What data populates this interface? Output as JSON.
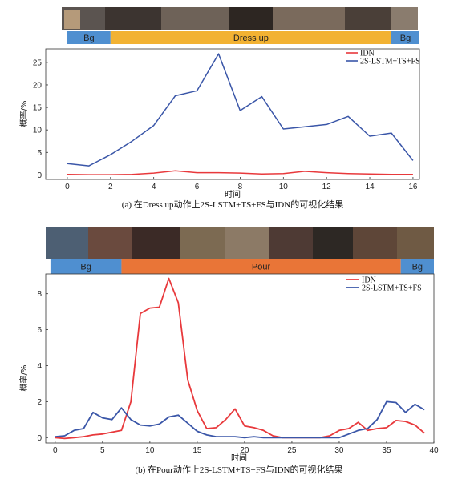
{
  "colors": {
    "idn": "#e8393c",
    "lstm": "#3a56a8",
    "seg_bg": "#4f8fd0",
    "seg_dress": "#f2b233",
    "seg_pour": "#e97537"
  },
  "panels": [
    {
      "segments": [
        {
          "label": "Bg",
          "from": 0,
          "to": 2
        },
        {
          "label": "Dress up",
          "from": 2,
          "to": 15
        },
        {
          "label": "Bg",
          "from": 15,
          "to": 16.3
        }
      ],
      "caption": "(a) 在Dress up动作上2S-LSTM+TS+FS与IDN的可视化结果"
    },
    {
      "segments": [
        {
          "label": "Bg",
          "from": -0.5,
          "to": 7
        },
        {
          "label": "Pour",
          "from": 7,
          "to": 36.5
        },
        {
          "label": "Bg",
          "from": 36.5,
          "to": 40
        }
      ],
      "caption": "(b) 在Pour动作上2S-LSTM+TS+FS与IDN的可视化结果"
    }
  ],
  "chart_data": [
    {
      "type": "line",
      "xlabel": "时间",
      "ylabel": "概率/%",
      "xlim": [
        -1,
        16.3
      ],
      "ylim": [
        -1,
        28
      ],
      "xticks": [
        0,
        2,
        4,
        6,
        8,
        10,
        12,
        14,
        16
      ],
      "yticks": [
        0,
        5,
        10,
        15,
        20,
        25
      ],
      "legend": "top-right",
      "series": [
        {
          "name": "IDN",
          "color": "#e8393c",
          "x": [
            0,
            1,
            2,
            3,
            4,
            5,
            6,
            7,
            8,
            9,
            10,
            11,
            12,
            13,
            14,
            15,
            16
          ],
          "y": [
            0.1,
            0.05,
            0.05,
            0.1,
            0.4,
            0.9,
            0.5,
            0.5,
            0.4,
            0.2,
            0.3,
            0.8,
            0.5,
            0.3,
            0.2,
            0.1,
            0.1
          ]
        },
        {
          "name": "2S-LSTM+TS+FS",
          "color": "#3a56a8",
          "x": [
            0,
            1,
            2,
            3,
            4,
            5,
            6,
            7,
            8,
            9,
            10,
            11,
            12,
            13,
            14,
            15,
            16
          ],
          "y": [
            2.5,
            2.0,
            4.5,
            7.5,
            11.0,
            17.6,
            18.7,
            26.9,
            14.3,
            17.4,
            10.2,
            10.7,
            11.2,
            13.0,
            8.6,
            9.3,
            3.2
          ]
        }
      ]
    },
    {
      "type": "line",
      "xlabel": "时间",
      "ylabel": "概率/%",
      "xlim": [
        -1,
        40
      ],
      "ylim": [
        -0.3,
        9.1
      ],
      "xticks": [
        0,
        5,
        10,
        15,
        20,
        25,
        30,
        35,
        40
      ],
      "yticks": [
        0,
        2,
        4,
        6,
        8
      ],
      "legend": "top-right",
      "series": [
        {
          "name": "IDN",
          "color": "#e8393c",
          "x": [
            0,
            1,
            2,
            3,
            4,
            5,
            6,
            7,
            8,
            9,
            10,
            11,
            12,
            13,
            14,
            15,
            16,
            17,
            18,
            19,
            20,
            21,
            22,
            23,
            24,
            25,
            26,
            27,
            28,
            29,
            30,
            31,
            32,
            33,
            34,
            35,
            36,
            37,
            38,
            39
          ],
          "y": [
            0.0,
            -0.05,
            0.0,
            0.05,
            0.15,
            0.2,
            0.3,
            0.4,
            2.0,
            6.9,
            7.2,
            7.25,
            8.85,
            7.5,
            3.2,
            1.5,
            0.5,
            0.55,
            1.0,
            1.6,
            0.65,
            0.55,
            0.4,
            0.1,
            0.0,
            0.0,
            0.0,
            0.0,
            0.0,
            0.1,
            0.4,
            0.5,
            0.85,
            0.4,
            0.5,
            0.55,
            0.95,
            0.9,
            0.7,
            0.25
          ]
        },
        {
          "name": "2S-LSTM+TS+FS",
          "color": "#3a56a8",
          "x": [
            0,
            1,
            2,
            3,
            4,
            5,
            6,
            7,
            8,
            9,
            10,
            11,
            12,
            13,
            14,
            15,
            16,
            17,
            18,
            19,
            20,
            21,
            22,
            23,
            24,
            25,
            26,
            27,
            28,
            29,
            30,
            31,
            32,
            33,
            34,
            35,
            36,
            37,
            38,
            39
          ],
          "y": [
            0.05,
            0.1,
            0.4,
            0.5,
            1.4,
            1.1,
            1.0,
            1.65,
            1.0,
            0.7,
            0.65,
            0.75,
            1.15,
            1.25,
            0.8,
            0.35,
            0.15,
            0.05,
            0.05,
            0.05,
            0.0,
            0.05,
            0.0,
            0.0,
            0.0,
            0.0,
            0.0,
            0.0,
            0.0,
            0.0,
            0.0,
            0.2,
            0.4,
            0.5,
            1.0,
            2.0,
            1.95,
            1.4,
            1.85,
            1.55
          ]
        }
      ]
    }
  ]
}
